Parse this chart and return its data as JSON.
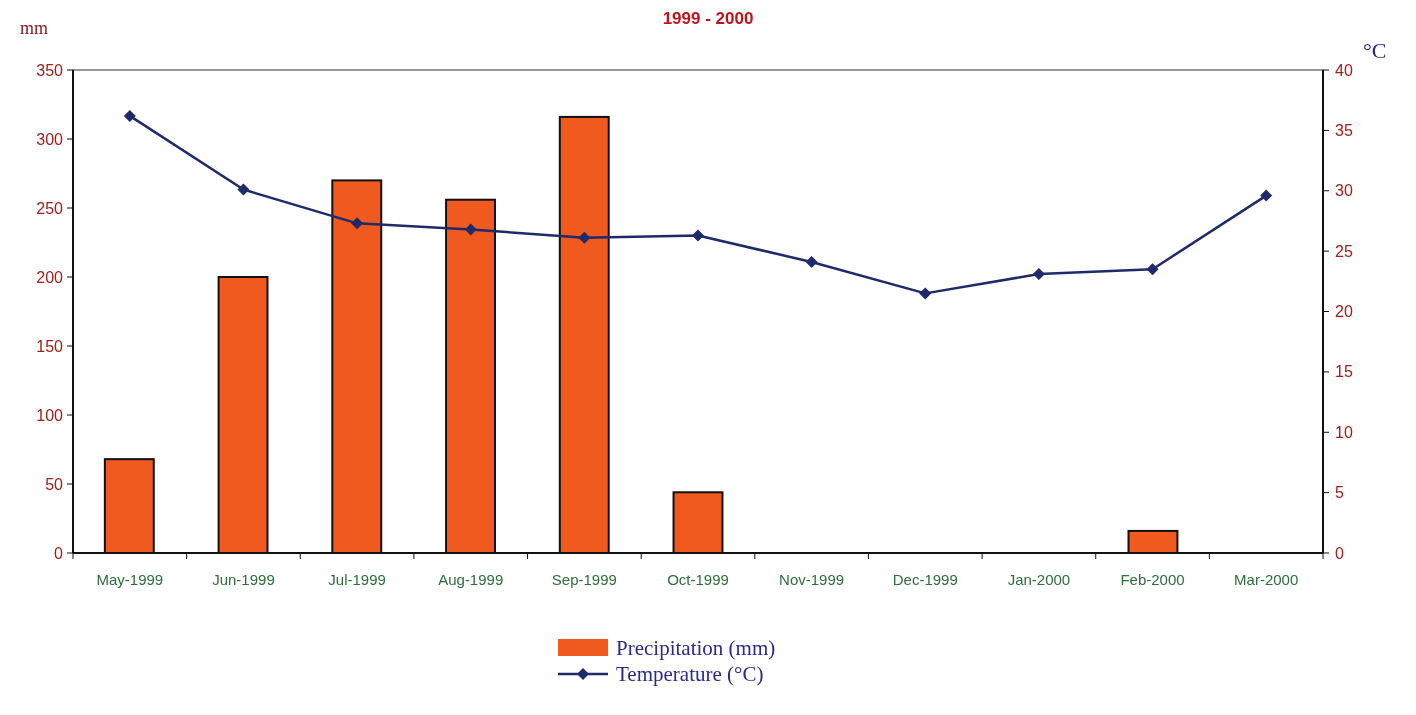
{
  "chart_data": {
    "type": "bar",
    "title": "1999 - 2000",
    "ylabel": "mm",
    "y2label": "°C",
    "categories": [
      "May-1999",
      "Jun-1999",
      "Jul-1999",
      "Aug-1999",
      "Sep-1999",
      "Oct-1999",
      "Nov-1999",
      "Dec-1999",
      "Jan-2000",
      "Feb-2000",
      "Mar-2000"
    ],
    "series": [
      {
        "name": "Precipitation (mm)",
        "color": "#f05a1e",
        "values": [
          68,
          200,
          270,
          256,
          316,
          44,
          0,
          0,
          0,
          16,
          0
        ]
      },
      {
        "name": "Temperature (°C)",
        "type": "line",
        "axis": "y2",
        "color": "#1f2a6b",
        "values": [
          36.2,
          30.1,
          27.3,
          26.8,
          26.1,
          26.3,
          24.1,
          21.5,
          23.1,
          23.5,
          29.6
        ]
      }
    ],
    "ylim": [
      0,
      350
    ],
    "yticks": [
      0,
      50,
      100,
      150,
      200,
      250,
      300,
      350
    ],
    "y2lim": [
      0,
      40
    ],
    "y2ticks": [
      0,
      5,
      10,
      15,
      20,
      25,
      30,
      35,
      40
    ],
    "grid": false,
    "legend": "bottom",
    "marker": "diamond",
    "line_style": "solid"
  }
}
